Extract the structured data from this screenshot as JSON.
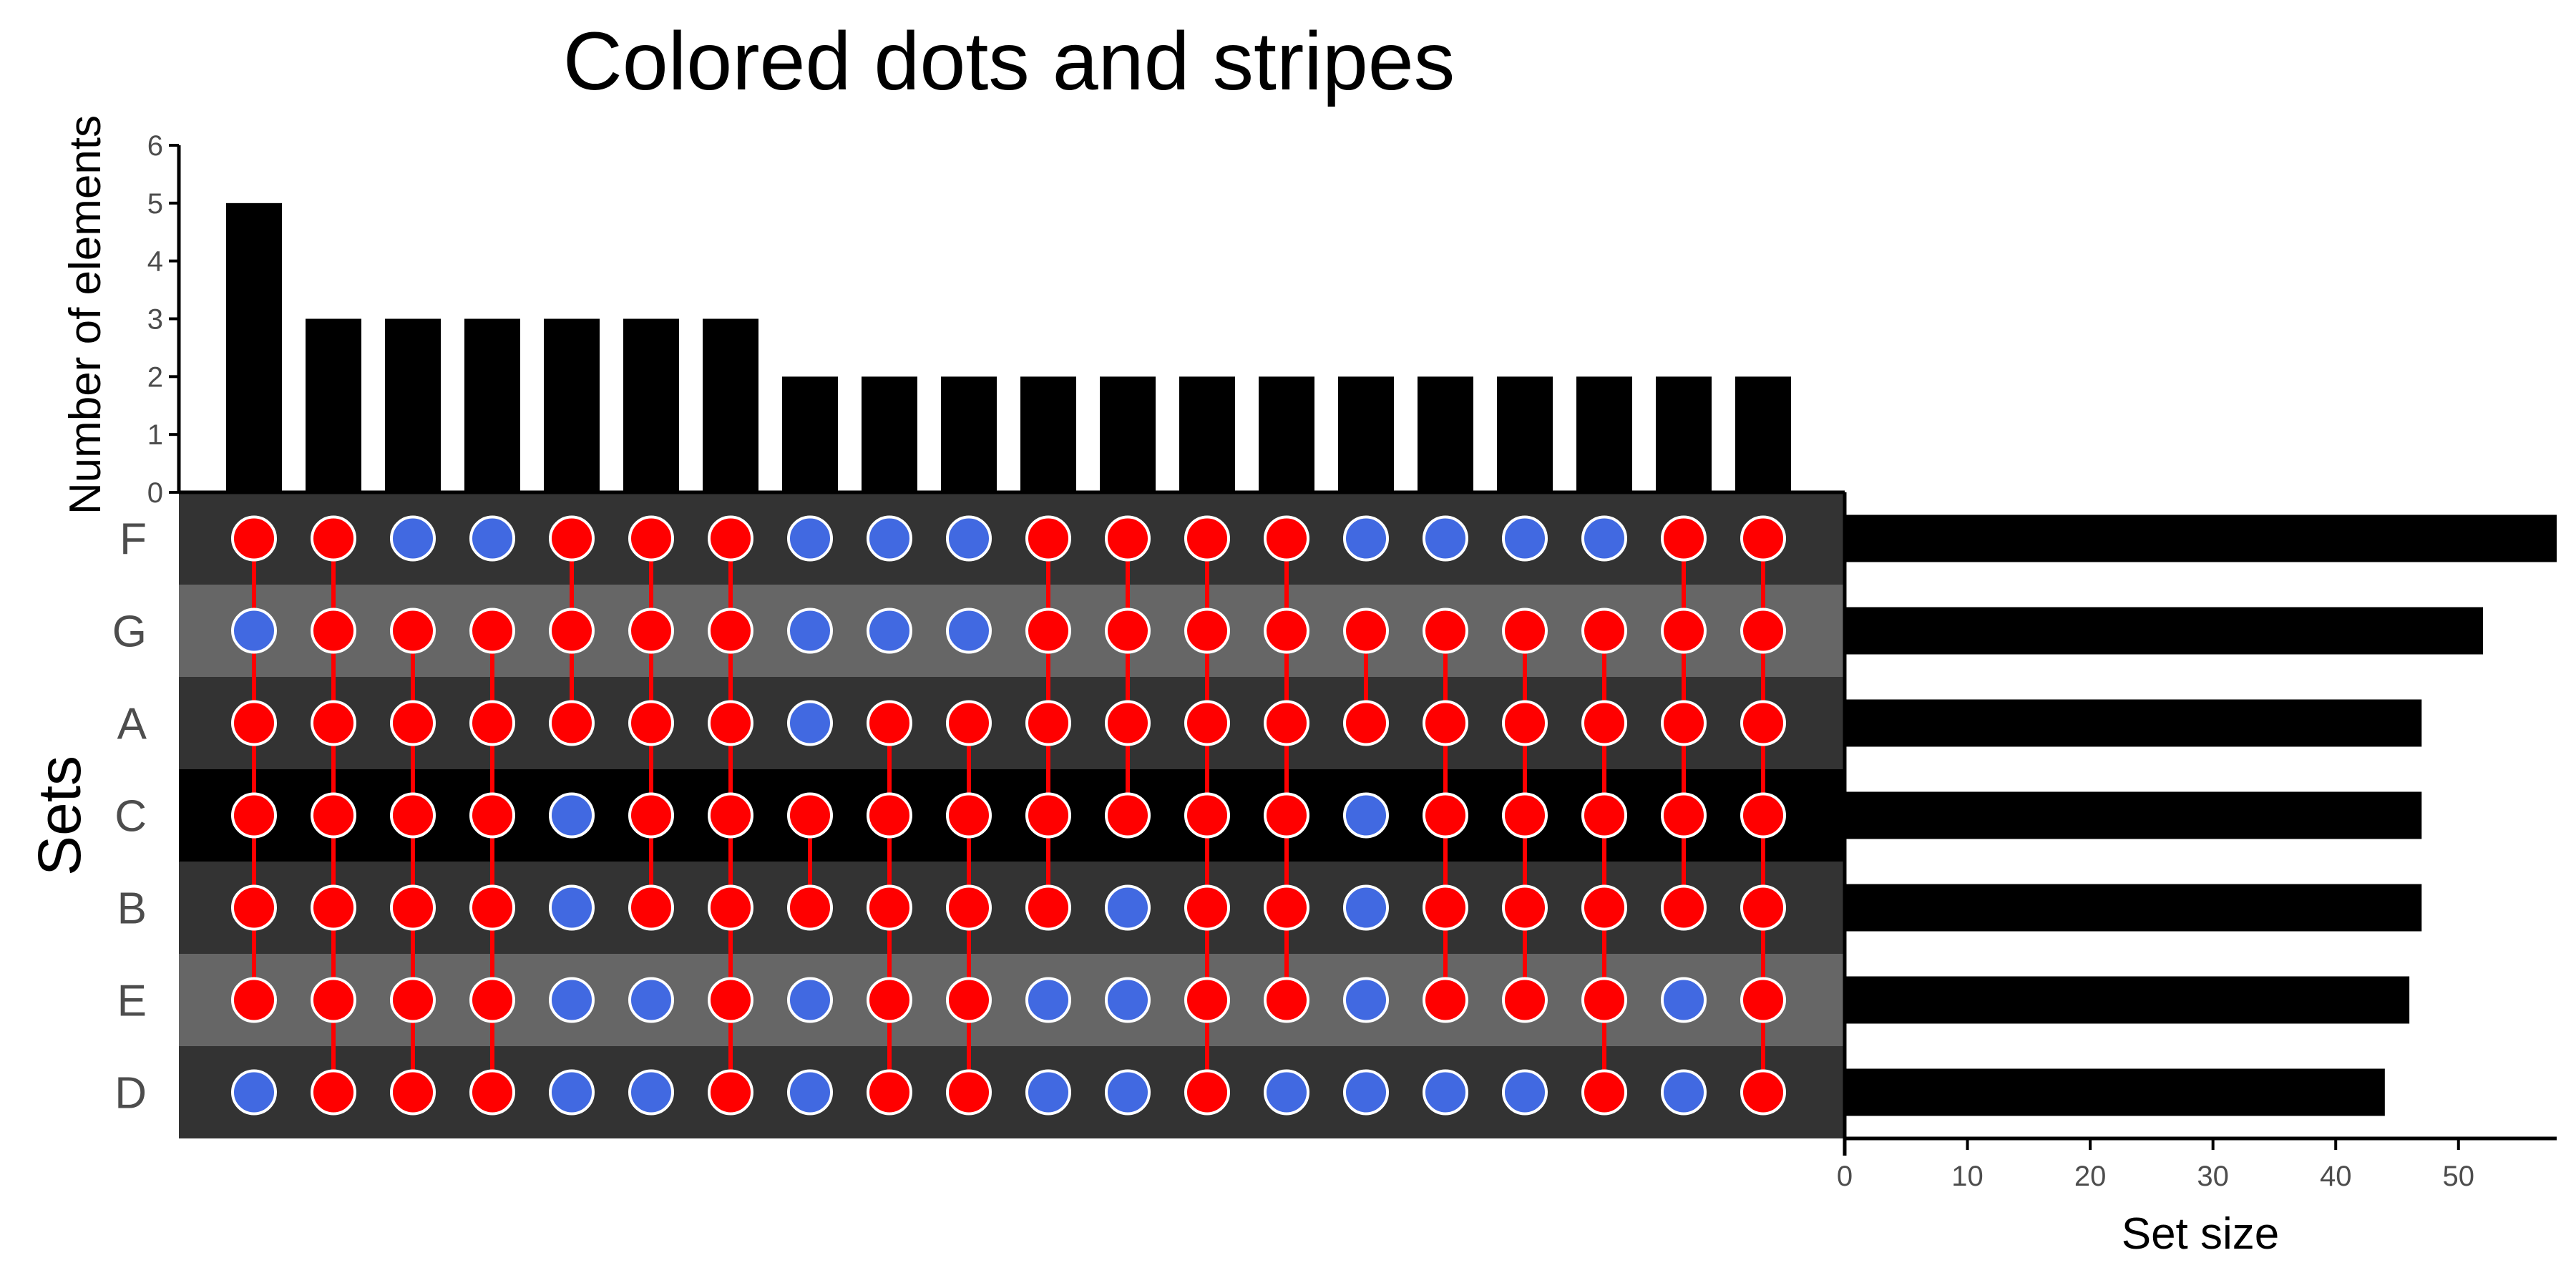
{
  "chart_data": {
    "type": "upset",
    "title": "Colored dots and stripes",
    "intersection_axis": {
      "label": "Number of elements",
      "ticks": [
        0,
        1,
        2,
        3,
        4,
        5,
        6
      ],
      "ylim": [
        0,
        6
      ]
    },
    "set_size_axis": {
      "label": "Set size",
      "ticks": [
        0,
        10,
        20,
        30,
        40,
        50
      ],
      "xlim": [
        0,
        58
      ]
    },
    "matrix_title": "Sets",
    "sets": [
      "F",
      "G",
      "A",
      "C",
      "B",
      "E",
      "D"
    ],
    "set_sizes": [
      58,
      52,
      47,
      47,
      47,
      46,
      44
    ],
    "intersection_sizes": [
      5,
      3,
      3,
      3,
      3,
      3,
      3,
      2,
      2,
      2,
      2,
      2,
      2,
      2,
      2,
      2,
      2,
      2,
      2,
      2
    ],
    "membership": [
      [
        "F",
        "A",
        "C",
        "B",
        "E"
      ],
      [
        "F",
        "G",
        "A",
        "C",
        "B",
        "E",
        "D"
      ],
      [
        "G",
        "A",
        "C",
        "B",
        "E",
        "D"
      ],
      [
        "G",
        "A",
        "C",
        "B",
        "E",
        "D"
      ],
      [
        "F",
        "G",
        "A"
      ],
      [
        "F",
        "G",
        "A",
        "C",
        "B"
      ],
      [
        "F",
        "G",
        "A",
        "C",
        "B",
        "E",
        "D"
      ],
      [
        "C",
        "B"
      ],
      [
        "A",
        "C",
        "B",
        "E",
        "D"
      ],
      [
        "A",
        "C",
        "B",
        "E",
        "D"
      ],
      [
        "F",
        "G",
        "A",
        "C",
        "B"
      ],
      [
        "F",
        "G",
        "A",
        "C"
      ],
      [
        "F",
        "G",
        "A",
        "C",
        "B",
        "E",
        "D"
      ],
      [
        "F",
        "G",
        "A",
        "C",
        "B",
        "E"
      ],
      [
        "G",
        "A"
      ],
      [
        "G",
        "A",
        "C",
        "B",
        "E"
      ],
      [
        "G",
        "A",
        "C",
        "B",
        "E"
      ],
      [
        "G",
        "A",
        "C",
        "B",
        "E",
        "D"
      ],
      [
        "F",
        "G",
        "A",
        "C",
        "B"
      ],
      [
        "F",
        "G",
        "A",
        "C",
        "B",
        "E",
        "D"
      ]
    ],
    "colors": {
      "bars": "#000000",
      "dot_active": "#ff0000",
      "dot_inactive": "#4169e1",
      "dot_outline": "#ffffff",
      "connector": "#ff0000",
      "stripes": [
        "#333333",
        "#666666",
        "#333333",
        "#000000",
        "#333333",
        "#666666",
        "#333333"
      ]
    }
  }
}
